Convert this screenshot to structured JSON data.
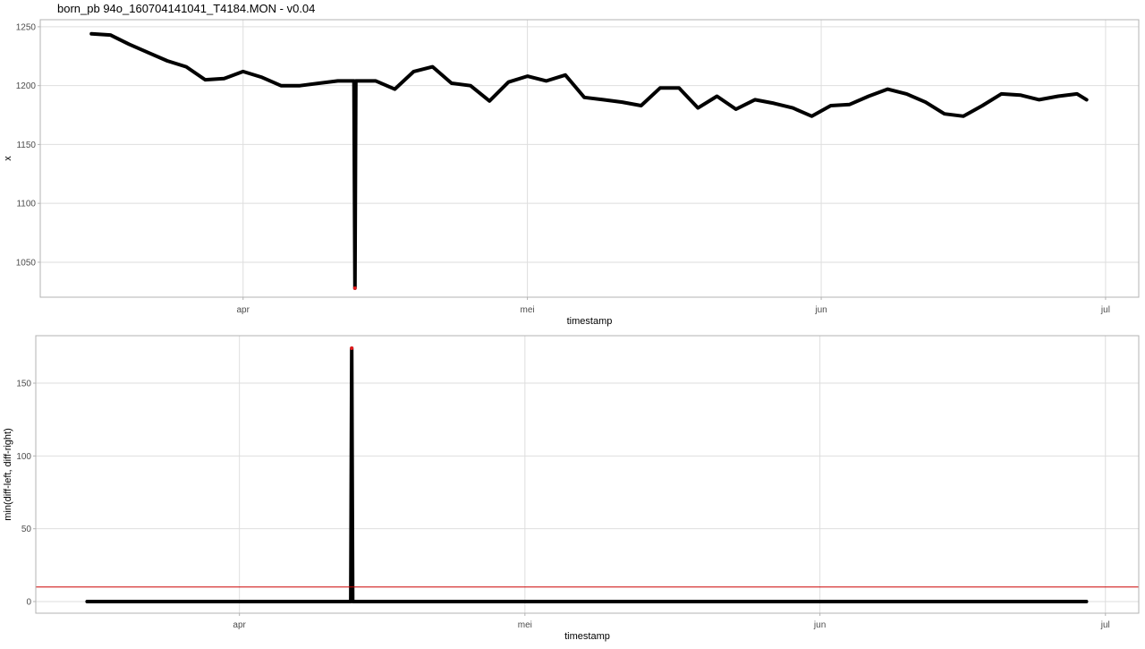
{
  "chart_data": [
    {
      "type": "line",
      "title": "born_pb 94o_160704141041_T4184.MON - v0.04",
      "x_label": "timestamp",
      "y_label": "x",
      "xlim": [
        70.6,
        186.5
      ],
      "ylim": [
        1020.3,
        1256
      ],
      "xticks": [
        {
          "value": 92,
          "label": "apr"
        },
        {
          "value": 122,
          "label": "mei"
        },
        {
          "value": 153,
          "label": "jun"
        },
        {
          "value": 183,
          "label": "jul"
        }
      ],
      "yticks": [
        1050,
        1100,
        1150,
        1200,
        1250
      ],
      "grid": true,
      "series": [
        {
          "type": "line",
          "color": "#000000",
          "x": [
            76,
            78,
            80,
            82,
            84,
            86,
            88,
            90,
            92,
            94,
            96,
            98,
            100,
            102,
            103.7,
            103.8,
            103.9,
            106,
            108,
            110,
            112,
            114,
            116,
            118,
            120,
            122,
            124,
            126,
            128,
            130,
            132,
            134,
            136,
            138,
            140,
            142,
            144,
            146,
            148,
            150,
            152,
            154,
            156,
            158,
            160,
            162,
            164,
            166,
            168,
            170,
            172,
            174,
            176,
            178,
            180,
            181
          ],
          "values": [
            1244,
            1243,
            1235,
            1228,
            1221,
            1216,
            1205,
            1206,
            1212,
            1207,
            1200,
            1200,
            1202,
            1204,
            1204,
            1028,
            1204,
            1204,
            1197,
            1212,
            1216,
            1202,
            1200,
            1187,
            1203,
            1208,
            1204,
            1209,
            1190,
            1188,
            1186,
            1183,
            1198,
            1198,
            1181,
            1191,
            1180,
            1188,
            1185,
            1181,
            1174,
            1183,
            1184,
            1191,
            1197,
            1193,
            1186,
            1176,
            1174,
            1183,
            1193,
            1192,
            1188,
            1191,
            1193,
            1188
          ]
        },
        {
          "type": "scatter",
          "color": "#e41a1c",
          "x": [
            103.8
          ],
          "values": [
            1028
          ]
        }
      ]
    },
    {
      "type": "line",
      "x_label": "timestamp",
      "y_label": "min(diff-left, diff-right)",
      "xlim": [
        70.6,
        186.5
      ],
      "ylim": [
        -8,
        182.6
      ],
      "xticks": [
        {
          "value": 92,
          "label": "apr"
        },
        {
          "value": 122,
          "label": "mei"
        },
        {
          "value": 153,
          "label": "jun"
        },
        {
          "value": 183,
          "label": "jul"
        }
      ],
      "yticks": [
        0,
        50,
        100,
        150
      ],
      "grid": true,
      "hline": {
        "value": 10,
        "color": "#cc0000"
      },
      "series": [
        {
          "type": "line",
          "color": "#000000",
          "x": [
            76,
            78,
            80,
            82,
            84,
            86,
            88,
            90,
            92,
            94,
            96,
            98,
            100,
            102,
            103.7,
            103.8,
            103.9,
            106,
            108,
            110,
            112,
            114,
            116,
            118,
            120,
            122,
            124,
            126,
            128,
            130,
            132,
            134,
            136,
            138,
            140,
            142,
            144,
            146,
            148,
            150,
            152,
            154,
            156,
            158,
            160,
            162,
            164,
            166,
            168,
            170,
            172,
            174,
            176,
            178,
            180,
            181
          ],
          "values": [
            0,
            0,
            0,
            0,
            0,
            0,
            0,
            0,
            0,
            0,
            0,
            0,
            0,
            0,
            0,
            174,
            0,
            0,
            0,
            0,
            0,
            0,
            0,
            0,
            0,
            0,
            0,
            0,
            0,
            0,
            0,
            0,
            0,
            0,
            0,
            0,
            0,
            0,
            0,
            0,
            0,
            0,
            0,
            0,
            0,
            0,
            0,
            0,
            0,
            0,
            0,
            0,
            0,
            0,
            0,
            0
          ]
        },
        {
          "type": "scatter",
          "color": "#e41a1c",
          "x": [
            103.8
          ],
          "values": [
            174
          ]
        }
      ]
    }
  ]
}
